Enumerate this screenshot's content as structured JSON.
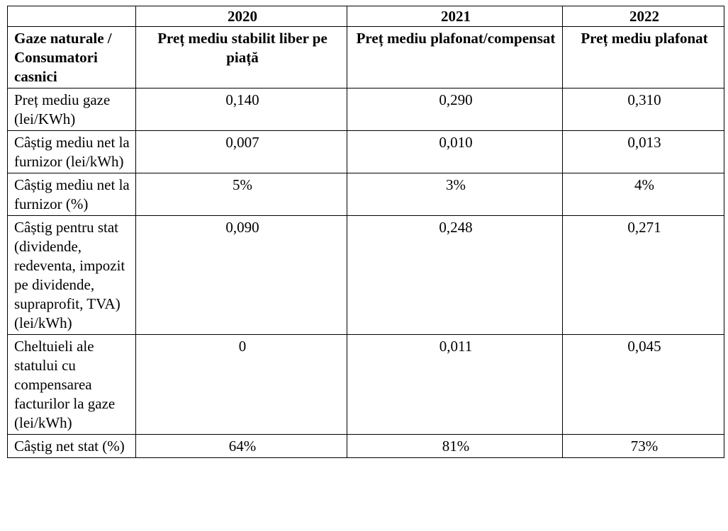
{
  "table": {
    "corner": "",
    "years": [
      "2020",
      "2021",
      "2022"
    ],
    "header": {
      "label": "Gaze naturale  / Consumatori casnici",
      "columns": [
        "Preț mediu stabilit liber pe piață",
        "Preț mediu plafonat/compensat",
        "Preț mediu plafonat"
      ]
    },
    "rows": [
      {
        "label": "Preț mediu gaze (lei/KWh)",
        "values": [
          "0,140",
          "0,290",
          "0,310"
        ]
      },
      {
        "label": "Câștig mediu net la furnizor (lei/kWh)",
        "values": [
          "0,007",
          "0,010",
          "0,013"
        ]
      },
      {
        "label": "Câștig mediu net la furnizor (%)",
        "values": [
          "5%",
          "3%",
          "4%"
        ]
      },
      {
        "label": "Câștig pentru stat (dividende, redeventa, impozit pe dividende, supraprofit, TVA) (lei/kWh)",
        "values": [
          "0,090",
          "0,248",
          "0,271"
        ]
      },
      {
        "label": "Cheltuieli ale statului cu compensarea facturilor la gaze (lei/kWh)",
        "values": [
          "0",
          "0,011",
          "0,045"
        ]
      },
      {
        "label": "Câștig  net stat (%)",
        "values": [
          "64%",
          "81%",
          "73%"
        ]
      }
    ]
  }
}
